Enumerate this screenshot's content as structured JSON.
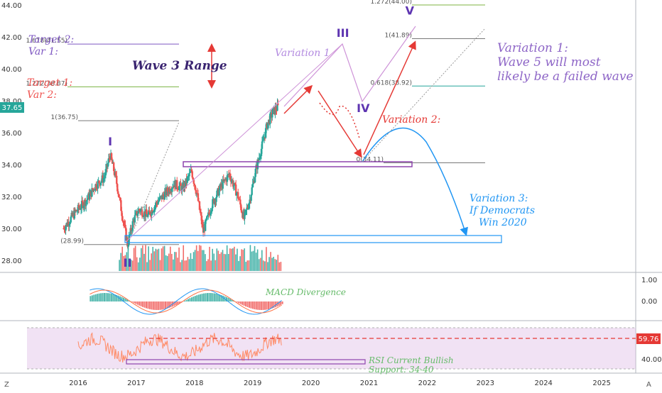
{
  "chart_data": {
    "type": "candlestick",
    "y_axis": {
      "ticks": [
        "44.00",
        "42.00",
        "40.00",
        "38.00",
        "36.00",
        "34.00",
        "32.00",
        "30.00",
        "28.00"
      ],
      "range": [
        27.3,
        44.4
      ],
      "current_price": "37.65",
      "current_price_color": "#26a69a"
    },
    "x_axis": {
      "years": [
        "2016",
        "2017",
        "2018",
        "2019",
        "2020",
        "2021",
        "2022",
        "2023",
        "2024",
        "2025"
      ]
    },
    "price_points": [
      {
        "x": 2015.75,
        "y": 30.0
      },
      {
        "x": 2015.95,
        "y": 31.0
      },
      {
        "x": 2016.15,
        "y": 31.8
      },
      {
        "x": 2016.3,
        "y": 32.7
      },
      {
        "x": 2016.45,
        "y": 33.2
      },
      {
        "x": 2016.55,
        "y": 34.6
      },
      {
        "x": 2016.65,
        "y": 33.1
      },
      {
        "x": 2016.75,
        "y": 31.0
      },
      {
        "x": 2016.85,
        "y": 28.99
      },
      {
        "x": 2016.95,
        "y": 30.5
      },
      {
        "x": 2017.05,
        "y": 31.2
      },
      {
        "x": 2017.2,
        "y": 30.8
      },
      {
        "x": 2017.35,
        "y": 31.6
      },
      {
        "x": 2017.5,
        "y": 32.2
      },
      {
        "x": 2017.65,
        "y": 32.8
      },
      {
        "x": 2017.8,
        "y": 32.5
      },
      {
        "x": 2017.95,
        "y": 33.6
      },
      {
        "x": 2018.05,
        "y": 32.0
      },
      {
        "x": 2018.15,
        "y": 29.8
      },
      {
        "x": 2018.3,
        "y": 31.5
      },
      {
        "x": 2018.45,
        "y": 32.6
      },
      {
        "x": 2018.6,
        "y": 33.4
      },
      {
        "x": 2018.75,
        "y": 32.0
      },
      {
        "x": 2018.85,
        "y": 30.6
      },
      {
        "x": 2018.95,
        "y": 31.8
      },
      {
        "x": 2019.05,
        "y": 33.6
      },
      {
        "x": 2019.15,
        "y": 35.0
      },
      {
        "x": 2019.25,
        "y": 36.5
      },
      {
        "x": 2019.35,
        "y": 37.3
      },
      {
        "x": 2019.45,
        "y": 37.65
      }
    ],
    "fib_levels": [
      {
        "label": "1.272(44.00)",
        "value": 44.0,
        "color": "#7cb342"
      },
      {
        "label": "1(41.89)",
        "value": 41.89,
        "color": "#787878"
      },
      {
        "label": "0.618(38.92)",
        "value": 38.92,
        "color": "#26a69a"
      },
      {
        "label": "0(34.11)",
        "value": 34.11,
        "color": "#787878"
      },
      {
        "label": "1.618(41.55)",
        "value": 41.55,
        "color": "#7e57c2"
      },
      {
        "label": "1.272(38.87)",
        "value": 38.87,
        "color": "#7cb342"
      },
      {
        "label": "1(36.75)",
        "value": 36.75,
        "color": "#787878"
      },
      {
        "label": "(28.99)",
        "value": 28.99,
        "color": "#787878"
      }
    ],
    "wave_labels": [
      {
        "text": "I",
        "x": 2016.55,
        "y": 35.2
      },
      {
        "text": "II",
        "x": 2016.85,
        "y": 27.6
      },
      {
        "text": "III",
        "x": 2020.55,
        "y": 42.0
      },
      {
        "text": "IV",
        "x": 2020.9,
        "y": 37.3
      },
      {
        "text": "V",
        "x": 2021.7,
        "y": 43.4
      }
    ],
    "annotations": {
      "target2": "Target 2:",
      "var1": "Var 1:",
      "target1": "Target 1:",
      "var2": "Var 2:",
      "wave3_range": "Wave 3 Range",
      "variation1": "Variation 1",
      "variation2": "Variation 2:",
      "variation1_note_line1": "Variation 1:",
      "variation1_note_line2": "Wave 5 will most",
      "variation1_note_line3": "likely be a failed wave",
      "variation3_line1": "Variation 3:",
      "variation3_line2": "If Democrats",
      "variation3_line3": "Win 2020",
      "macd_label": "MACD Divergence",
      "rsi_label_line1": "RSI Current Bullish",
      "rsi_label_line2": "Support: 34-40"
    },
    "macd_panel": {
      "ticks": [
        "1.00",
        "0.00"
      ]
    },
    "rsi_panel": {
      "current": "59.76",
      "ticks": [
        "40.00"
      ]
    },
    "corner_left": "Z",
    "corner_right": "A"
  }
}
